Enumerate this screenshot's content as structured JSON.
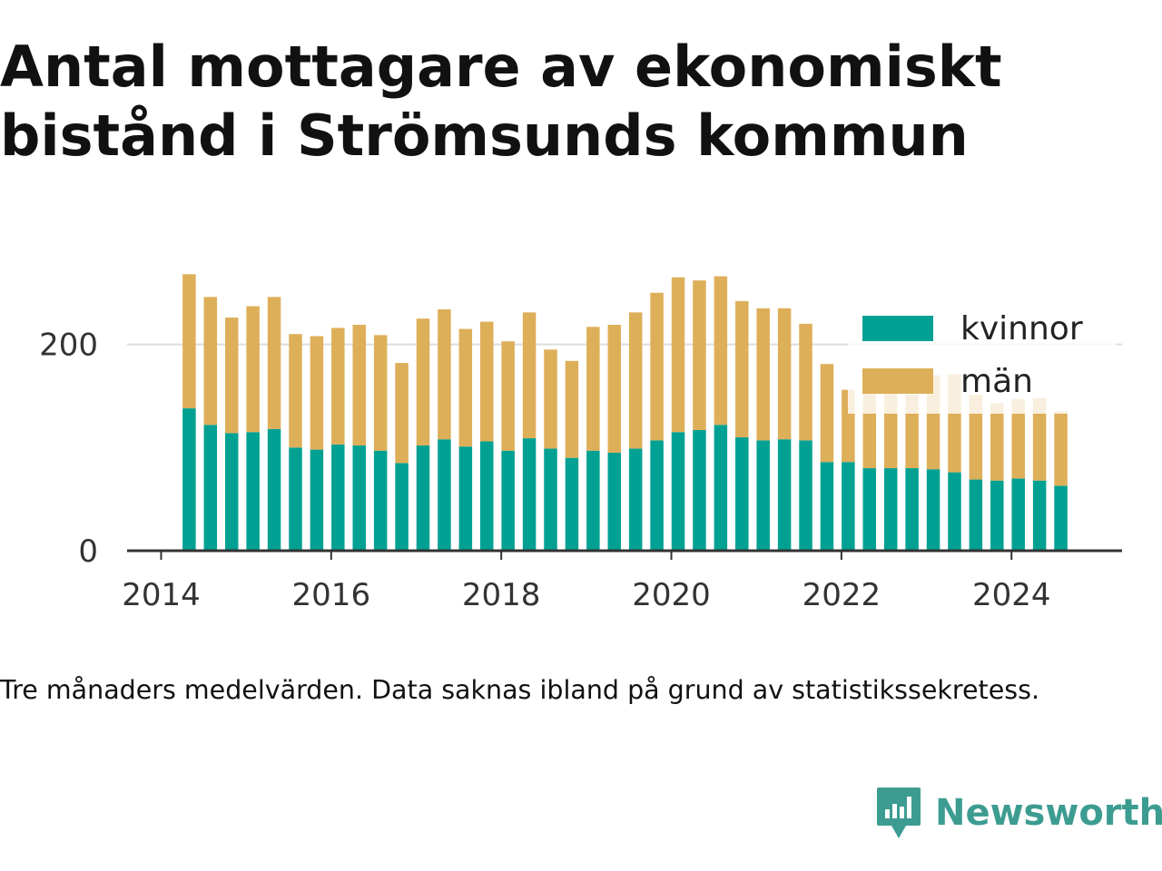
{
  "title": "Antal mottagare av ekonomiskt bistånd i Strömsunds kommun",
  "note": "Tre månaders medelvärden. Data saknas ibland på grund av statistikssekretess.",
  "brand": {
    "name": "Newsworthy",
    "icon": "newsworthy-logo-icon",
    "color": "#3d9c91"
  },
  "chart_data": {
    "type": "bar",
    "stacked": true,
    "title": "",
    "xlabel": "",
    "ylabel": "",
    "x_range": [
      2013.6,
      2025.3
    ],
    "ylim": [
      0,
      270
    ],
    "y_ticks": [
      0,
      200
    ],
    "x_ticks": [
      2014,
      2016,
      2018,
      2020,
      2022,
      2024
    ],
    "x_tick_labels": [
      "2014",
      "2016",
      "2018",
      "2020",
      "2022",
      "2024"
    ],
    "grid": "horizontal",
    "legend_position": "top-right",
    "x": [
      2014.33,
      2014.58,
      2014.83,
      2015.08,
      2015.33,
      2015.58,
      2015.83,
      2016.08,
      2016.33,
      2016.58,
      2016.83,
      2017.08,
      2017.33,
      2017.58,
      2017.83,
      2018.08,
      2018.33,
      2018.58,
      2018.83,
      2019.08,
      2019.33,
      2019.58,
      2019.83,
      2020.08,
      2020.33,
      2020.58,
      2020.83,
      2021.08,
      2021.33,
      2021.58,
      2021.83,
      2022.08,
      2022.33,
      2022.58,
      2022.83,
      2023.08,
      2023.33,
      2023.58,
      2023.83,
      2024.08,
      2024.33,
      2024.58
    ],
    "series": [
      {
        "name": "kvinnor",
        "color": "#00a193",
        "values": [
          138,
          122,
          114,
          115,
          118,
          100,
          98,
          103,
          102,
          97,
          85,
          102,
          108,
          101,
          106,
          97,
          109,
          99,
          90,
          97,
          95,
          99,
          107,
          115,
          117,
          122,
          110,
          107,
          108,
          107,
          86,
          86,
          80,
          80,
          80,
          79,
          76,
          69,
          68,
          70,
          68,
          63
        ]
      },
      {
        "name": "män",
        "color": "#deaf59",
        "values": [
          130,
          124,
          112,
          122,
          128,
          110,
          110,
          113,
          117,
          112,
          97,
          123,
          126,
          114,
          116,
          106,
          122,
          96,
          94,
          120,
          124,
          132,
          143,
          150,
          145,
          144,
          132,
          128,
          127,
          113,
          95,
          70,
          95,
          90,
          71,
          91,
          95,
          82,
          75,
          77,
          80,
          72
        ]
      }
    ]
  }
}
